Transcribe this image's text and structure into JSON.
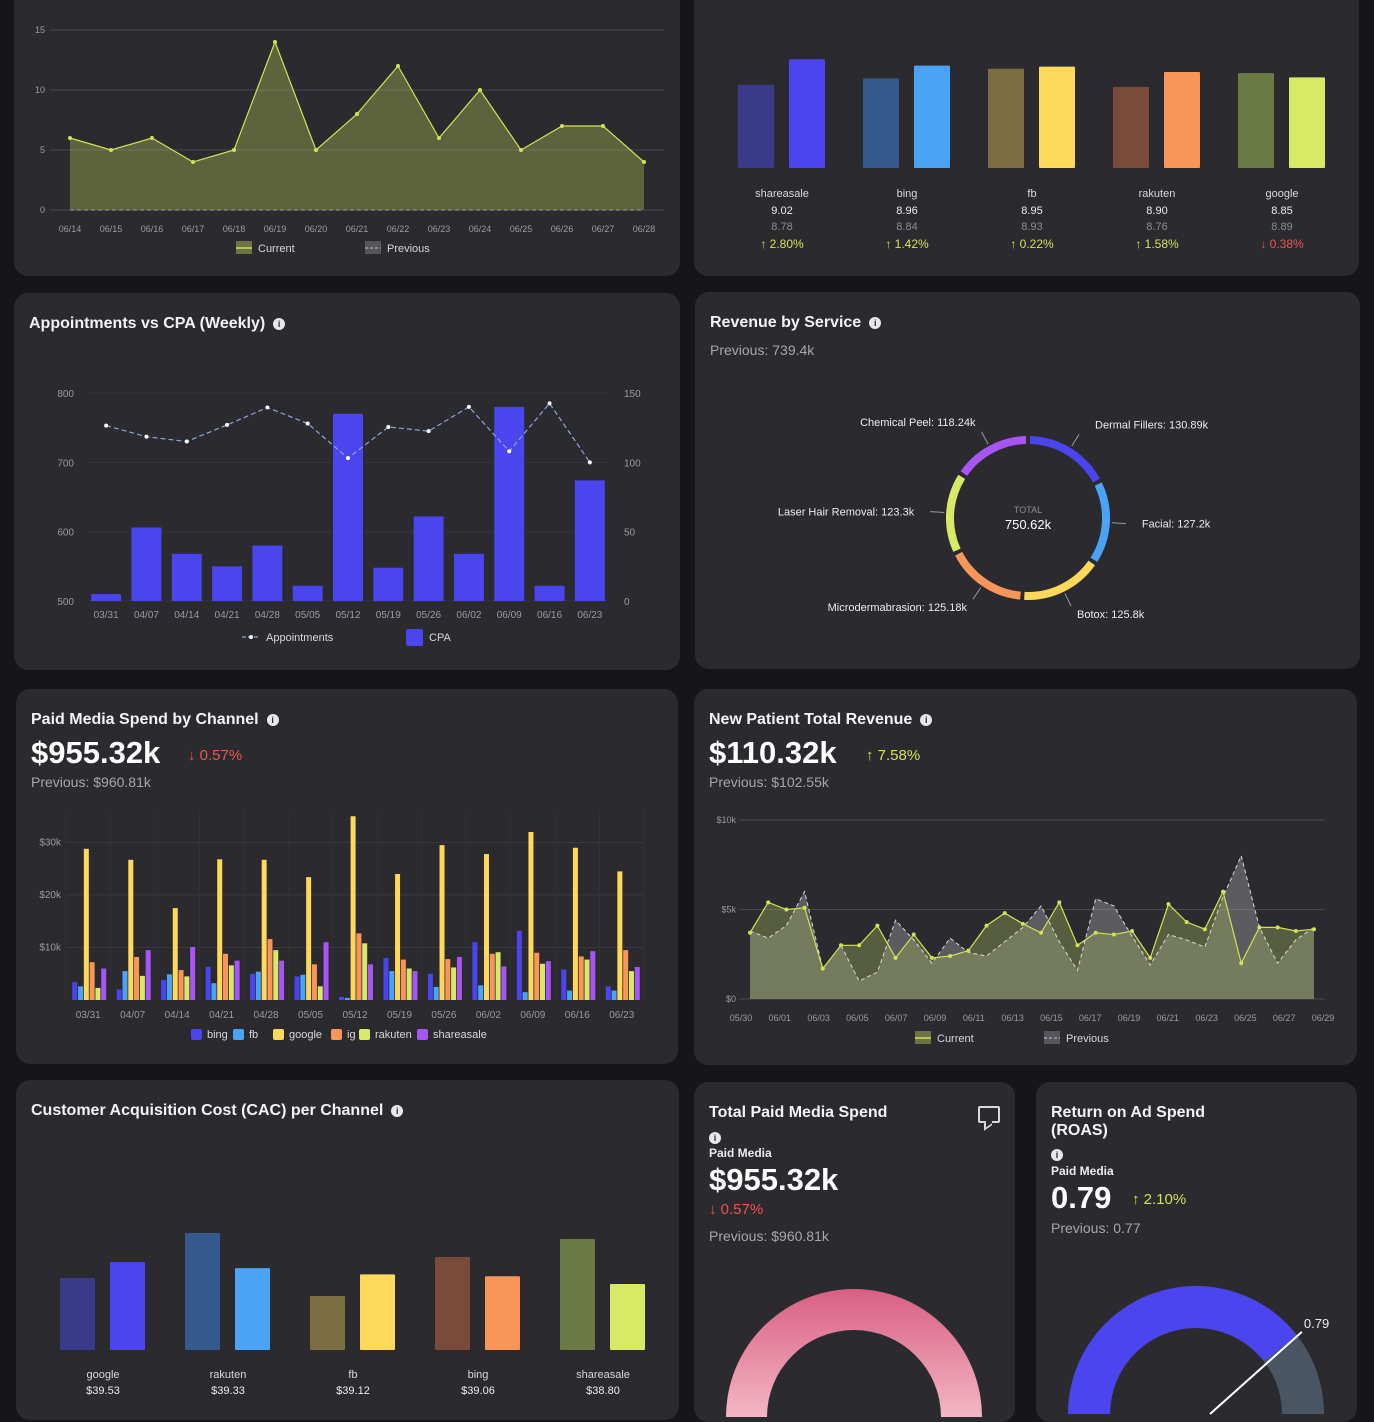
{
  "card_area_trend": {
    "chart_data": {
      "type": "area",
      "x": [
        "06/14",
        "06/15",
        "06/16",
        "06/17",
        "06/18",
        "06/19",
        "06/20",
        "06/21",
        "06/22",
        "06/23",
        "06/24",
        "06/25",
        "06/26",
        "06/27",
        "06/28"
      ],
      "series": [
        {
          "name": "Current",
          "values": [
            6,
            5,
            6,
            4,
            5,
            14,
            5,
            8,
            12,
            6,
            10,
            5,
            7,
            7,
            4
          ]
        },
        {
          "name": "Previous",
          "values": [
            0,
            0,
            0,
            0,
            0,
            0,
            0,
            0,
            0,
            0,
            0,
            0,
            0,
            0,
            0
          ]
        }
      ],
      "y_ticks": [
        "0",
        "5",
        "10",
        "15"
      ],
      "ylim": [
        0,
        15
      ],
      "legend_position": "bottom",
      "colors": {
        "current": "#d4e157",
        "previous": "#8a8a92"
      }
    }
  },
  "card_channel_bars": {
    "chart_data": {
      "type": "bar",
      "categories": [
        "shareasale",
        "bing",
        "fb",
        "rakuten",
        "google"
      ],
      "series": [
        {
          "values": [
            8.78,
            8.84,
            8.93,
            8.76,
            8.89
          ]
        },
        {
          "values": [
            9.02,
            8.96,
            8.95,
            8.9,
            8.85
          ]
        }
      ],
      "colors_previous": [
        "#3a3a8a",
        "#355a8e",
        "#7c6e42",
        "#7a4a3a",
        "#6b7a45"
      ],
      "colors_current": [
        "#4a45ee",
        "#4aa3f5",
        "#fdd85a",
        "#f99559",
        "#d8ea65"
      ]
    },
    "channels": [
      {
        "name": "shareasale",
        "current": "9.02",
        "previous": "8.78",
        "change": "2.80%",
        "dir": "up"
      },
      {
        "name": "bing",
        "current": "8.96",
        "previous": "8.84",
        "change": "1.42%",
        "dir": "up"
      },
      {
        "name": "fb",
        "current": "8.95",
        "previous": "8.93",
        "change": "0.22%",
        "dir": "up"
      },
      {
        "name": "rakuten",
        "current": "8.90",
        "previous": "8.76",
        "change": "1.58%",
        "dir": "up"
      },
      {
        "name": "google",
        "current": "8.85",
        "previous": "8.89",
        "change": "0.38%",
        "dir": "down"
      }
    ]
  },
  "appointments": {
    "title": "Appointments vs CPA (Weekly)",
    "chart_data": {
      "type": "bar",
      "categories": [
        "03/31",
        "04/07",
        "04/14",
        "04/21",
        "04/28",
        "05/05",
        "05/12",
        "05/19",
        "05/26",
        "06/02",
        "06/09",
        "06/16",
        "06/23"
      ],
      "series": [
        {
          "name": "Appointments",
          "type": "line",
          "axis": "left",
          "values": [
            753,
            737,
            730,
            754,
            779,
            756,
            706,
            751,
            745,
            780,
            716,
            785,
            700
          ]
        },
        {
          "name": "CPA",
          "type": "bar",
          "axis": "right",
          "values": [
            5,
            53,
            34,
            25,
            40,
            11,
            135,
            24,
            61,
            34,
            140,
            11,
            87
          ]
        }
      ],
      "y_left_ticks": [
        "500",
        "600",
        "700",
        "800"
      ],
      "ylim_left": [
        500,
        800
      ],
      "y_right_ticks": [
        "0",
        "50",
        "100",
        "150"
      ],
      "ylim_right": [
        0,
        150
      ],
      "legend_position": "bottom",
      "colors": {
        "bar": "#4a45ee",
        "line": "#8fa4d8"
      }
    }
  },
  "revenue_service": {
    "title": "Revenue by Service",
    "previous": "Previous: 739.4k",
    "total_label": "TOTAL",
    "total_value": "750.62k",
    "chart_data": {
      "type": "pie",
      "slices": [
        {
          "label": "Dermal Fillers: 130.89k",
          "value": 130.89,
          "color": "#4a45ee"
        },
        {
          "label": "Facial: 127.2k",
          "value": 127.2,
          "color": "#4aa3f5"
        },
        {
          "label": "Botox: 125.8k",
          "value": 125.8,
          "color": "#fdd85a"
        },
        {
          "label": "Microdermabrasion: 125.18k",
          "value": 125.18,
          "color": "#f99559"
        },
        {
          "label": "Laser Hair Removal: 123.3k",
          "value": 123.3,
          "color": "#d8ea65"
        },
        {
          "label": "Chemical Peel: 118.24k",
          "value": 118.24,
          "color": "#a855f7"
        }
      ]
    }
  },
  "paid_media": {
    "title": "Paid Media Spend by Channel",
    "value": "$955.32k",
    "change": "0.57%",
    "change_dir": "down",
    "previous": "Previous: $960.81k",
    "chart_data": {
      "type": "bar",
      "categories": [
        "03/31",
        "04/07",
        "04/14",
        "04/21",
        "04/28",
        "05/05",
        "05/12",
        "05/19",
        "05/26",
        "06/02",
        "06/09",
        "06/16",
        "06/23"
      ],
      "y_ticks": [
        "$10k",
        "$20k",
        "$30k"
      ],
      "ylim": [
        0,
        36000
      ],
      "series": [
        {
          "name": "bing",
          "values": [
            3400,
            2000,
            3800,
            6300,
            5000,
            4500,
            600,
            8000,
            5000,
            11000,
            13200,
            5800,
            2600
          ]
        },
        {
          "name": "fb",
          "values": [
            2600,
            5500,
            4900,
            3200,
            5400,
            4800,
            400,
            5500,
            2500,
            2800,
            1500,
            1800,
            1800
          ]
        },
        {
          "name": "google",
          "values": [
            28800,
            26700,
            17500,
            26800,
            26700,
            23400,
            35000,
            24000,
            29500,
            27800,
            32000,
            29000,
            24500
          ]
        },
        {
          "name": "ig",
          "values": [
            7200,
            8200,
            5700,
            8800,
            11600,
            6800,
            12700,
            7700,
            7800,
            8800,
            9000,
            8300,
            9500
          ]
        },
        {
          "name": "rakuten",
          "values": [
            2300,
            4600,
            4500,
            6600,
            9500,
            2600,
            10800,
            6000,
            6200,
            9100,
            6900,
            7700,
            5500
          ]
        },
        {
          "name": "shareasale",
          "values": [
            6000,
            9500,
            10100,
            7500,
            7500,
            11000,
            6800,
            5500,
            8200,
            6400,
            7400,
            9300,
            6300
          ]
        }
      ],
      "colors": [
        "#4a45ee",
        "#4aa3f5",
        "#fdd85a",
        "#f99559",
        "#d8ea65",
        "#a855f7"
      ],
      "legend_position": "bottom"
    }
  },
  "new_patient": {
    "title": "New Patient Total Revenue",
    "value": "$110.32k",
    "change": "7.58%",
    "change_dir": "up",
    "previous": "Previous: $102.55k",
    "chart_data": {
      "type": "area",
      "x_ticks": [
        "05/30",
        "06/01",
        "06/03",
        "06/05",
        "06/07",
        "06/09",
        "06/11",
        "06/13",
        "06/15",
        "06/17",
        "06/19",
        "06/21",
        "06/23",
        "06/25",
        "06/27",
        "06/29"
      ],
      "y_ticks": [
        "$0",
        "$5k",
        "$10k"
      ],
      "ylim": [
        0,
        10000
      ],
      "series": [
        {
          "name": "Current",
          "values": [
            3700,
            5400,
            5000,
            5100,
            1700,
            3000,
            3000,
            4100,
            2300,
            3600,
            2300,
            2400,
            2700,
            4100,
            4800,
            4200,
            3700,
            5400,
            3000,
            3700,
            3600,
            3800,
            2300,
            5300,
            4300,
            3900,
            6000,
            2000,
            4000,
            4000,
            3800,
            3900
          ]
        },
        {
          "name": "Previous",
          "values": [
            3800,
            3400,
            4100,
            6000,
            1700,
            3000,
            1000,
            1500,
            4400,
            3300,
            2000,
            3400,
            2600,
            2400,
            3200,
            4000,
            5200,
            3200,
            1600,
            5600,
            5200,
            3500,
            1900,
            3600,
            3300,
            2900,
            5700,
            8000,
            4000,
            2000,
            3300,
            4000
          ]
        }
      ],
      "legend_position": "bottom",
      "colors": {
        "current": "#d4e157",
        "previous": "#9a9aa2"
      }
    }
  },
  "cac": {
    "title": "Customer Acquisition Cost (CAC) per Channel",
    "chart_data": {
      "type": "bar",
      "categories": [
        "google",
        "rakuten",
        "fb",
        "bing",
        "shareasale"
      ],
      "series": [
        {
          "values": [
            39.0,
            40.5,
            38.4,
            39.7,
            40.3
          ]
        },
        {
          "values": [
            39.53,
            39.33,
            39.12,
            39.06,
            38.8
          ]
        }
      ],
      "colors_previous": [
        "#3a3a8a",
        "#355a8e",
        "#7c6e42",
        "#7a4a3a",
        "#6b7a45"
      ],
      "colors_current": [
        "#4a45ee",
        "#4aa3f5",
        "#fdd85a",
        "#f99559",
        "#d8ea65"
      ]
    },
    "labels": [
      "$39.53",
      "$39.33",
      "$39.12",
      "$39.06",
      "$38.80"
    ]
  },
  "total_spend": {
    "title": "Total Paid Media Spend",
    "subtitle": "Paid Media",
    "value": "$955.32k",
    "change": "0.57%",
    "change_dir": "down",
    "previous": "Previous: $960.81k"
  },
  "roas": {
    "title_line1": "Return on Ad Spend",
    "title_line2": "(ROAS)",
    "subtitle": "Paid Media",
    "value": "0.79",
    "change": "2.10%",
    "change_dir": "up",
    "previous": "Previous: 0.77",
    "gauge_value": 0.79,
    "gauge_label": "0.79"
  }
}
